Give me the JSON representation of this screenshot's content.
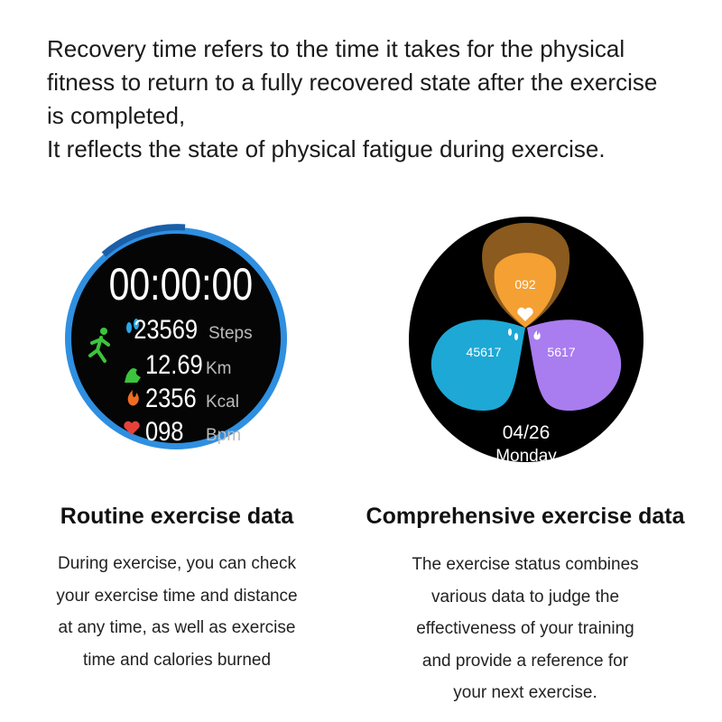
{
  "intro": {
    "lines": [
      "Recovery time refers to the time it takes for the physical",
      "fitness to return to a fully recovered state after the exercise",
      "is completed,",
      "It reflects the state of physical fatigue during exercise."
    ]
  },
  "left_panel": {
    "watch": {
      "timer": "00:00:00",
      "ring_color": "#2f8fe0",
      "stats": [
        {
          "icon": "footprints-icon",
          "value": "23569",
          "unit": "Steps",
          "color": "#2aa8e8"
        },
        {
          "icon": "distance-icon",
          "value": "12.69",
          "unit": "Km",
          "color": "#3cc43c"
        },
        {
          "icon": "flame-icon",
          "value": "2356",
          "unit": "Kcal",
          "color": "#f26b22"
        },
        {
          "icon": "heart-rate-icon",
          "value": "098",
          "unit": "Bpm",
          "color": "#e8413a"
        }
      ],
      "activity_icon": "running-icon"
    },
    "title": "Routine exercise data",
    "description": [
      "During exercise, you can check",
      "your exercise time and distance",
      "at any time, as well as exercise",
      "time and calories burned"
    ]
  },
  "right_panel": {
    "watch": {
      "heart_value": "092",
      "steps_value": "45617",
      "calories_value": "5617",
      "date": "04/26",
      "weekday": "Monday",
      "colors": {
        "heart": "#f5a033",
        "heart_outer": "#8a5a1e",
        "steps": "#1ea8d6",
        "calories": "#a97cf0"
      }
    },
    "title": "Comprehensive exercise data",
    "description": [
      "The exercise status combines",
      "various data to judge the",
      "effectiveness of your training",
      "and provide a reference for",
      "your next exercise."
    ]
  }
}
